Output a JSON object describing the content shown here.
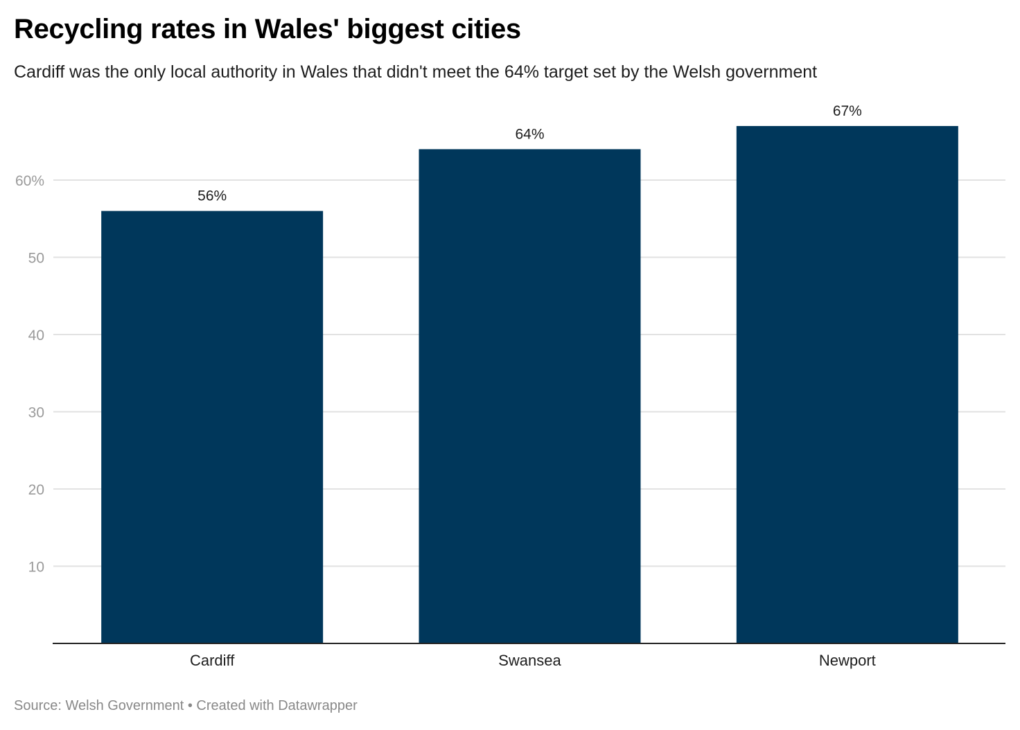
{
  "chart_data": {
    "type": "bar",
    "title": "Recycling rates in Wales' biggest cities",
    "subtitle": "Cardiff was the only local authority in Wales that didn't meet the 64% target set by the Welsh government",
    "categories": [
      "Cardiff",
      "Swansea",
      "Newport"
    ],
    "values": [
      56,
      64,
      67
    ],
    "data_labels": [
      "56%",
      "64%",
      "67%"
    ],
    "yticks": [
      10,
      20,
      30,
      40,
      50,
      60
    ],
    "ytick_labels": [
      "10",
      "20",
      "30",
      "40",
      "50",
      "60%"
    ],
    "ylim": [
      0,
      70
    ],
    "grid": true,
    "xlabel": "",
    "ylabel": "",
    "bar_color": "#00375b"
  },
  "footer": {
    "source": "Source: Welsh Government • Created with Datawrapper"
  }
}
